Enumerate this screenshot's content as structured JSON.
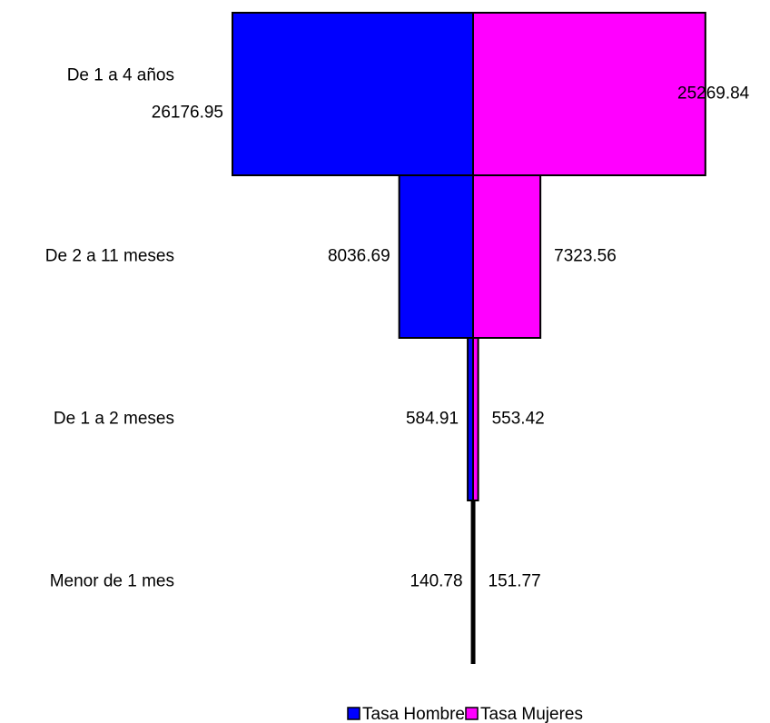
{
  "chart_data": {
    "type": "pyramid",
    "categories": [
      "De 1 a 4 años",
      "De 2 a 11 meses",
      "De 1 a 2 meses",
      "Menor de 1 mes"
    ],
    "series": [
      {
        "name": "Tasa Hombres",
        "color": "#0000ff",
        "values": [
          26176.95,
          8036.69,
          584.91,
          140.78
        ]
      },
      {
        "name": "Tasa Mujeres",
        "color": "#ff00ff",
        "values": [
          25269.84,
          7323.56,
          553.42,
          151.77
        ]
      }
    ],
    "legend": "bottom"
  }
}
